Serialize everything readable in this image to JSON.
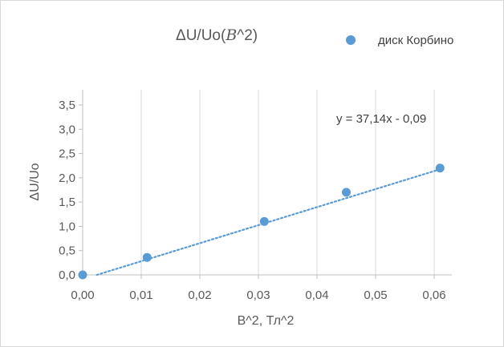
{
  "chart_data": {
    "type": "scatter",
    "title_prefix": "ΔU/Uo(",
    "title_var": "B",
    "title_suffix": "^2)",
    "xlabel": "B^2, Тл^2",
    "ylabel": "ΔU/Uo",
    "xlim": [
      0,
      0.06
    ],
    "ylim": [
      0,
      3.5
    ],
    "x_ticks": [
      "0,00",
      "0,01",
      "0,02",
      "0,03",
      "0,04",
      "0,05",
      "0,06"
    ],
    "y_ticks": [
      "0,0",
      "0,5",
      "1,0",
      "1,5",
      "2,0",
      "2,5",
      "3,0",
      "3,5"
    ],
    "x_tick_values": [
      0,
      0.01,
      0.02,
      0.03,
      0.04,
      0.05,
      0.06
    ],
    "y_tick_values": [
      0,
      0.5,
      1.0,
      1.5,
      2.0,
      2.5,
      3.0,
      3.5
    ],
    "grid": "vertical",
    "legend_position": "top-right",
    "series": [
      {
        "name": "диск Корбино",
        "color": "#5b9bd5",
        "x": [
          0,
          0.011,
          0.031,
          0.045,
          0.061
        ],
        "y": [
          0,
          0.36,
          1.1,
          1.7,
          2.2
        ]
      }
    ],
    "trendline": {
      "label": "y = 37,14x - 0,09",
      "slope": 37.14,
      "intercept": -0.09,
      "x_range": [
        0,
        0.061
      ],
      "style": "dotted",
      "color": "#5b9bd5"
    }
  }
}
